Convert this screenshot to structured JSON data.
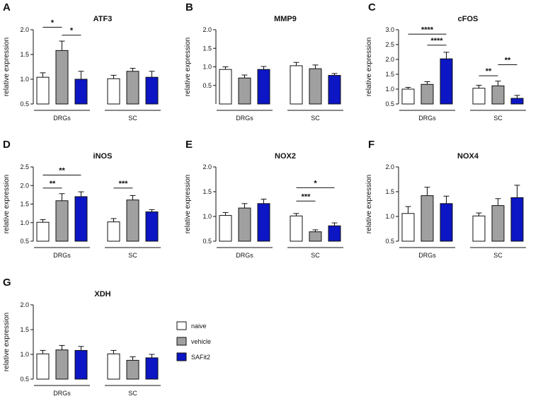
{
  "colors": {
    "naive": "#ffffff",
    "vehicle": "#a0a0a0",
    "SAFit2": "#0c16c4",
    "stroke": "#111111"
  },
  "legend": [
    {
      "name": "naive",
      "label": "naive"
    },
    {
      "name": "vehicle",
      "label": "vehicle"
    },
    {
      "name": "SAFit2",
      "label": "SAFit2"
    }
  ],
  "chart_data": [
    {
      "type": "bar",
      "letter": "A",
      "title": "ATF3",
      "ylabel": "relative expression",
      "ylim": [
        0.5,
        2.0
      ],
      "yticks": [
        0.5,
        1.0,
        1.5,
        2.0
      ],
      "ytick_labels": [
        "0.5",
        "1.0",
        "1.5",
        "2.0"
      ],
      "groups": [
        "DRGs",
        "SC"
      ],
      "series": [
        {
          "name": "naive",
          "values": [
            1.04,
            1.01
          ],
          "errors": [
            0.09,
            0.07
          ]
        },
        {
          "name": "vehicle",
          "values": [
            1.58,
            1.16
          ],
          "errors": [
            0.19,
            0.06
          ]
        },
        {
          "name": "SAFit2",
          "values": [
            1.0,
            1.04
          ],
          "errors": [
            0.16,
            0.12
          ]
        }
      ],
      "significance": [
        {
          "group": 0,
          "from": 0,
          "to": 1,
          "label": "*",
          "level": 2.05
        },
        {
          "group": 0,
          "from": 1,
          "to": 2,
          "label": "*",
          "level": 1.89
        }
      ]
    },
    {
      "type": "bar",
      "letter": "B",
      "title": "MMP9",
      "ylabel": "relative expression",
      "ylim": [
        0.0,
        2.0
      ],
      "yticks": [
        0.5,
        1.0,
        1.5,
        2.0
      ],
      "ytick_labels": [
        "0.5",
        "1.0",
        "1.5",
        "2.0"
      ],
      "groups": [
        "DRGs",
        "SC"
      ],
      "series": [
        {
          "name": "naive",
          "values": [
            0.93,
            1.03
          ],
          "errors": [
            0.07,
            0.09
          ]
        },
        {
          "name": "vehicle",
          "values": [
            0.7,
            0.95
          ],
          "errors": [
            0.08,
            0.1
          ]
        },
        {
          "name": "SAFit2",
          "values": [
            0.93,
            0.77
          ],
          "errors": [
            0.08,
            0.05
          ]
        }
      ],
      "significance": []
    },
    {
      "type": "bar",
      "letter": "C",
      "title": "cFOS",
      "ylabel": "relative expression",
      "ylim": [
        0.5,
        3.0
      ],
      "yticks": [
        0.5,
        1.0,
        1.5,
        2.0,
        2.5,
        3.0
      ],
      "ytick_labels": [
        "0.5",
        "1.0",
        "1.5",
        "2.0",
        "2.5",
        "3.0"
      ],
      "groups": [
        "DRGs",
        "SC"
      ],
      "series": [
        {
          "name": "naive",
          "values": [
            1.0,
            1.03
          ],
          "errors": [
            0.06,
            0.1
          ]
        },
        {
          "name": "vehicle",
          "values": [
            1.16,
            1.11
          ],
          "errors": [
            0.09,
            0.16
          ]
        },
        {
          "name": "SAFit2",
          "values": [
            2.02,
            0.69
          ],
          "errors": [
            0.22,
            0.1
          ]
        }
      ],
      "significance": [
        {
          "group": 0,
          "from": 0,
          "to": 2,
          "label": "****",
          "level": 2.85
        },
        {
          "group": 0,
          "from": 1,
          "to": 2,
          "label": "****",
          "level": 2.48
        },
        {
          "group": 1,
          "from": 0,
          "to": 1,
          "label": "**",
          "level": 1.45
        },
        {
          "group": 1,
          "from": 1,
          "to": 2,
          "label": "**",
          "level": 1.82
        }
      ]
    },
    {
      "type": "bar",
      "letter": "D",
      "title": "iNOS",
      "ylabel": "relative expression",
      "ylim": [
        0.5,
        2.5
      ],
      "yticks": [
        0.5,
        1.0,
        1.5,
        2.0,
        2.5
      ],
      "ytick_labels": [
        "0.5",
        "1.0",
        "1.5",
        "2.0",
        "2.5"
      ],
      "groups": [
        "DRGs",
        "SC"
      ],
      "series": [
        {
          "name": "naive",
          "values": [
            1.01,
            1.02
          ],
          "errors": [
            0.07,
            0.09
          ]
        },
        {
          "name": "vehicle",
          "values": [
            1.59,
            1.61
          ],
          "errors": [
            0.19,
            0.12
          ]
        },
        {
          "name": "SAFit2",
          "values": [
            1.7,
            1.29
          ],
          "errors": [
            0.13,
            0.06
          ]
        }
      ],
      "significance": [
        {
          "group": 0,
          "from": 0,
          "to": 2,
          "label": "**",
          "level": 2.28
        },
        {
          "group": 0,
          "from": 0,
          "to": 1,
          "label": "**",
          "level": 1.93
        },
        {
          "group": 1,
          "from": 0,
          "to": 1,
          "label": "***",
          "level": 1.93
        }
      ]
    },
    {
      "type": "bar",
      "letter": "E",
      "title": "NOX2",
      "ylabel": "relative expression",
      "ylim": [
        0.5,
        2.0
      ],
      "yticks": [
        0.5,
        1.0,
        1.5,
        2.0
      ],
      "ytick_labels": [
        "0.5",
        "1.0",
        "1.5",
        "2.0"
      ],
      "groups": [
        "DRGs",
        "SC"
      ],
      "series": [
        {
          "name": "naive",
          "values": [
            1.02,
            1.01
          ],
          "errors": [
            0.06,
            0.05
          ]
        },
        {
          "name": "vehicle",
          "values": [
            1.17,
            0.69
          ],
          "errors": [
            0.09,
            0.04
          ]
        },
        {
          "name": "SAFit2",
          "values": [
            1.26,
            0.81
          ],
          "errors": [
            0.09,
            0.06
          ]
        }
      ],
      "significance": [
        {
          "group": 1,
          "from": 0,
          "to": 2,
          "label": "*",
          "level": 1.58
        },
        {
          "group": 1,
          "from": 0,
          "to": 1,
          "label": "***",
          "level": 1.31
        }
      ]
    },
    {
      "type": "bar",
      "letter": "F",
      "title": "NOX4",
      "ylabel": "relative expression",
      "ylim": [
        0.5,
        2.0
      ],
      "yticks": [
        0.5,
        1.0,
        1.5,
        2.0
      ],
      "ytick_labels": [
        "0.5",
        "1.0",
        "1.5",
        "2.0"
      ],
      "groups": [
        "DRGs",
        "SC"
      ],
      "series": [
        {
          "name": "naive",
          "values": [
            1.06,
            1.01
          ],
          "errors": [
            0.14,
            0.06
          ]
        },
        {
          "name": "vehicle",
          "values": [
            1.42,
            1.22
          ],
          "errors": [
            0.17,
            0.14
          ]
        },
        {
          "name": "SAFit2",
          "values": [
            1.26,
            1.38
          ],
          "errors": [
            0.15,
            0.25
          ]
        }
      ],
      "significance": []
    },
    {
      "type": "bar",
      "letter": "G",
      "title": "XDH",
      "ylabel": "relative expression",
      "ylim": [
        0.5,
        2.0
      ],
      "yticks": [
        0.5,
        1.0,
        1.5,
        2.0
      ],
      "ytick_labels": [
        "0.5",
        "1.0",
        "1.5",
        "2.0"
      ],
      "groups": [
        "DRGs",
        "SC"
      ],
      "series": [
        {
          "name": "naive",
          "values": [
            1.01,
            1.01
          ],
          "errors": [
            0.07,
            0.07
          ]
        },
        {
          "name": "vehicle",
          "values": [
            1.09,
            0.88
          ],
          "errors": [
            0.09,
            0.07
          ]
        },
        {
          "name": "SAFit2",
          "values": [
            1.08,
            0.93
          ],
          "errors": [
            0.08,
            0.07
          ]
        }
      ],
      "significance": []
    }
  ]
}
